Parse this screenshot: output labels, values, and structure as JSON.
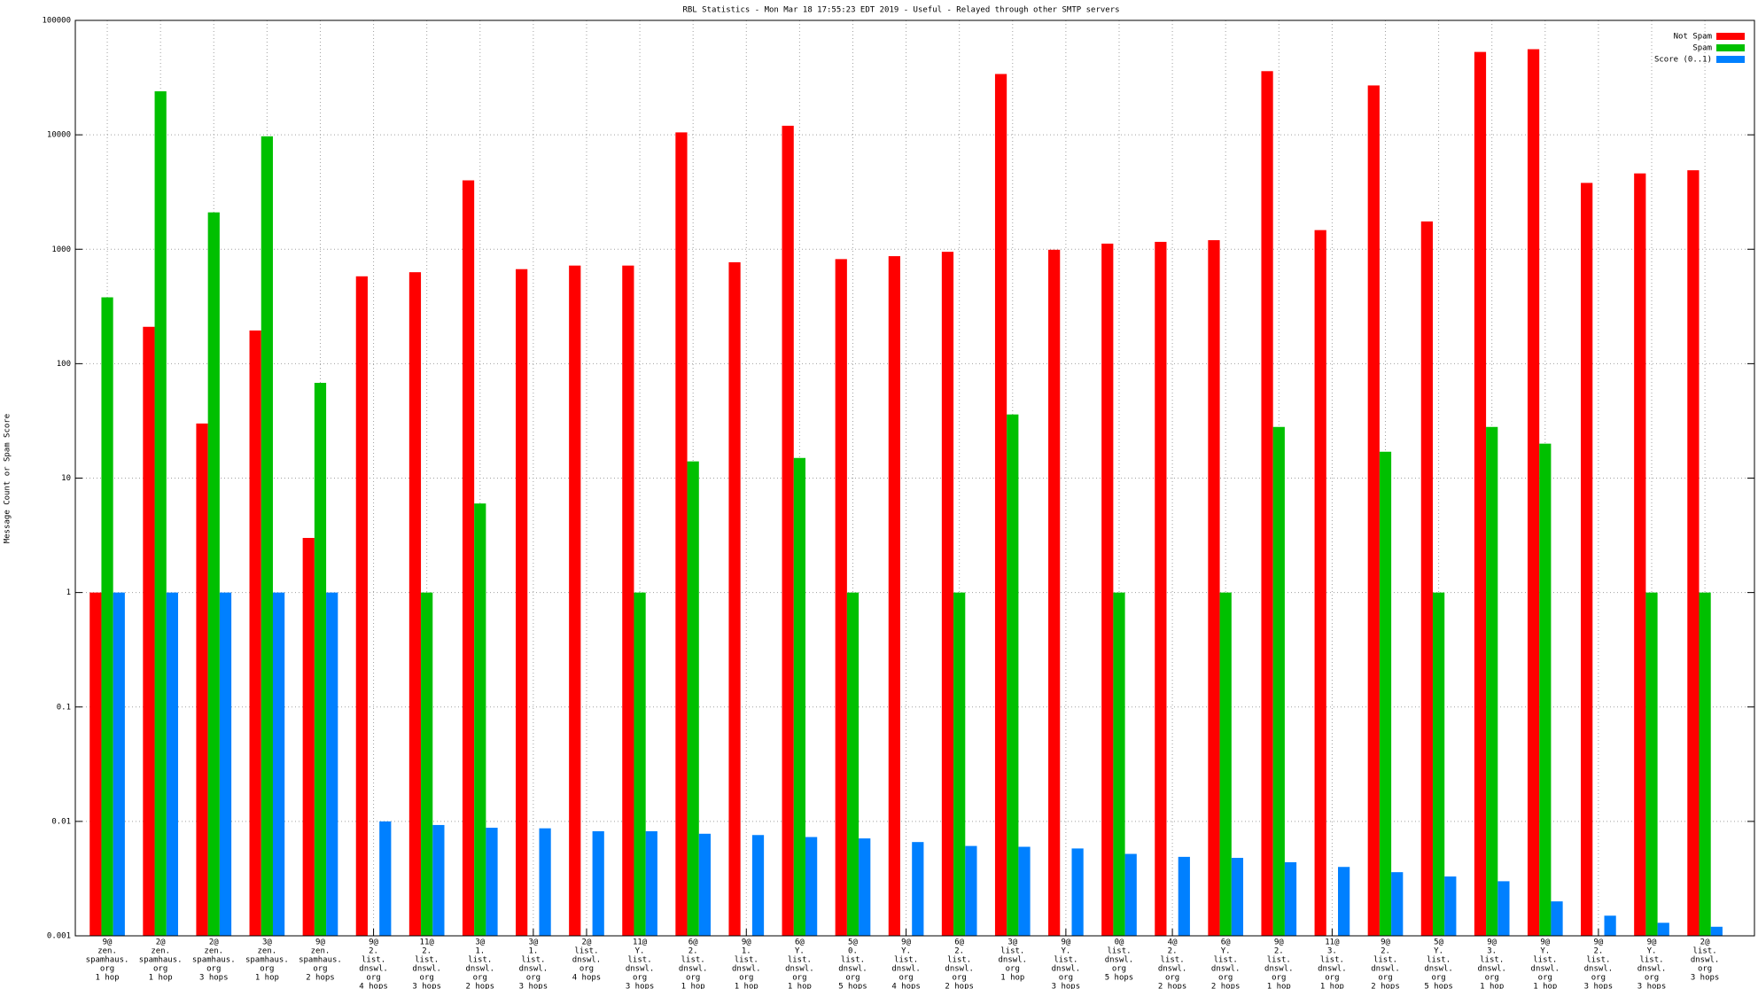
{
  "chart_data": {
    "type": "bar",
    "title": "RBL Statistics - Mon Mar 18 17:55:23 EDT 2019 - Useful - Relayed through other SMTP servers",
    "ylabel": "Message Count or Spam Score",
    "log_scale": true,
    "grid": true,
    "legend": "top-right",
    "ylim": [
      0.001,
      100000
    ],
    "yticks": [
      0.001,
      0.01,
      0.1,
      1,
      10,
      100,
      1000,
      10000,
      100000
    ],
    "categories": [
      [
        "9@",
        "zen.",
        "spamhaus.",
        "org",
        "1 hop"
      ],
      [
        "2@",
        "zen.",
        "spamhaus.",
        "org",
        "1 hop"
      ],
      [
        "2@",
        "zen.",
        "spamhaus.",
        "org",
        "3 hops"
      ],
      [
        "3@",
        "zen.",
        "spamhaus.",
        "org",
        "1 hop"
      ],
      [
        "9@",
        "zen.",
        "spamhaus.",
        "org",
        "2 hops"
      ],
      [
        "9@",
        "2.",
        "list.",
        "dnswl.",
        "org",
        "4 hops"
      ],
      [
        "11@",
        "2.",
        "list.",
        "dnswl.",
        "org",
        "3 hops"
      ],
      [
        "3@",
        "1.",
        "list.",
        "dnswl.",
        "org",
        "2 hops"
      ],
      [
        "3@",
        "1.",
        "list.",
        "dnswl.",
        "org",
        "3 hops"
      ],
      [
        "2@",
        "list.",
        "dnswl.",
        "org",
        "4 hops"
      ],
      [
        "11@",
        "Y.",
        "list.",
        "dnswl.",
        "org",
        "3 hops"
      ],
      [
        "6@",
        "2.",
        "list.",
        "dnswl.",
        "org",
        "1 hop"
      ],
      [
        "9@",
        "1.",
        "list.",
        "dnswl.",
        "org",
        "1 hop"
      ],
      [
        "6@",
        "Y.",
        "list.",
        "dnswl.",
        "org",
        "1 hop"
      ],
      [
        "5@",
        "0.",
        "list.",
        "dnswl.",
        "org",
        "5 hops"
      ],
      [
        "9@",
        "Y.",
        "list.",
        "dnswl.",
        "org",
        "4 hops"
      ],
      [
        "6@",
        "2.",
        "list.",
        "dnswl.",
        "org",
        "2 hops"
      ],
      [
        "3@",
        "list.",
        "dnswl.",
        "org",
        "1 hop"
      ],
      [
        "9@",
        "Y.",
        "list.",
        "dnswl.",
        "org",
        "3 hops"
      ],
      [
        "0@",
        "list.",
        "dnswl.",
        "org",
        "5 hops"
      ],
      [
        "4@",
        "2.",
        "list.",
        "dnswl.",
        "org",
        "2 hops"
      ],
      [
        "6@",
        "Y.",
        "list.",
        "dnswl.",
        "org",
        "2 hops"
      ],
      [
        "9@",
        "2.",
        "list.",
        "dnswl.",
        "org",
        "1 hop"
      ],
      [
        "11@",
        "3.",
        "list.",
        "dnswl.",
        "org",
        "1 hop"
      ],
      [
        "9@",
        "2.",
        "list.",
        "dnswl.",
        "org",
        "2 hops"
      ],
      [
        "5@",
        "Y.",
        "list.",
        "dnswl.",
        "org",
        "5 hops"
      ],
      [
        "9@",
        "3.",
        "list.",
        "dnswl.",
        "org",
        "1 hop"
      ],
      [
        "9@",
        "Y.",
        "list.",
        "dnswl.",
        "org",
        "1 hop"
      ],
      [
        "9@",
        "2.",
        "list.",
        "dnswl.",
        "org",
        "3 hops"
      ],
      [
        "9@",
        "Y.",
        "list.",
        "dnswl.",
        "org",
        "3 hops"
      ],
      [
        "2@",
        "list.",
        "dnswl.",
        "org",
        "3 hops"
      ]
    ],
    "series": [
      {
        "name": "Not Spam",
        "color": "#ff0000",
        "values": [
          1,
          210,
          30,
          195,
          3,
          580,
          630,
          4000,
          670,
          720,
          720,
          10500,
          770,
          12000,
          820,
          870,
          950,
          34000,
          990,
          1120,
          1160,
          1200,
          36000,
          1470,
          27000,
          1750,
          53000,
          56000,
          3800,
          4600,
          4900
        ]
      },
      {
        "name": "Spam",
        "color": "#00c000",
        "values": [
          380,
          24000,
          2100,
          9700,
          68,
          null,
          1,
          6,
          null,
          null,
          1,
          14,
          null,
          15,
          1,
          null,
          1,
          36,
          null,
          1,
          null,
          1,
          28,
          null,
          17,
          1,
          28,
          20,
          null,
          1,
          1
        ]
      },
      {
        "name": "Score (0..1)",
        "color": "#0080ff",
        "values": [
          1,
          1,
          1,
          1,
          1,
          0.01,
          0.0093,
          0.0088,
          0.0087,
          0.0082,
          0.0082,
          0.0078,
          0.0076,
          0.0073,
          0.0071,
          0.0066,
          0.0061,
          0.006,
          0.0058,
          0.0052,
          0.0049,
          0.0048,
          0.0044,
          0.004,
          0.0036,
          0.0033,
          0.003,
          0.002,
          0.0015,
          0.0013,
          0.0012
        ]
      }
    ]
  }
}
